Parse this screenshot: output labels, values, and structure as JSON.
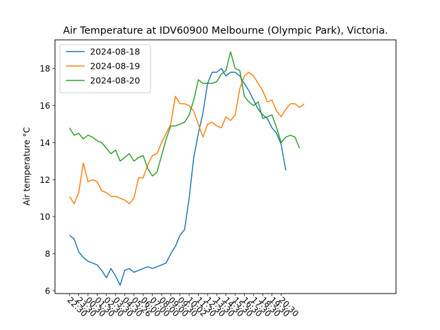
{
  "chart_data": {
    "type": "line",
    "title": "Air Temperature at IDV60900 Melbourne (Olympic Park), Victoria.",
    "xlabel": "",
    "ylabel": "Air temperature °C",
    "ylim": [
      5.85,
      19.55
    ],
    "yticks": [
      6,
      8,
      10,
      12,
      14,
      16,
      18
    ],
    "xlim": [
      -1.58,
      35.48
    ],
    "xticks": [
      "22:30",
      "23:30",
      "00:30",
      "01:30",
      "02:30",
      "03:30",
      "04:30",
      "05:26",
      "06:00",
      "07:00",
      "08:00",
      "09:00",
      "09:30",
      "10:02",
      "11:30",
      "12:30",
      "13:30",
      "14:30",
      "15:30",
      "16:30",
      "17:30",
      "18:30",
      "19:30",
      "20:30"
    ],
    "xtick_positions": [
      0,
      1,
      2,
      3,
      4,
      5,
      6,
      7,
      8,
      9,
      10,
      11,
      12,
      13,
      14,
      15,
      16,
      17,
      18,
      19,
      20,
      21,
      22,
      23
    ],
    "grid": false,
    "legend_position": "top-left",
    "series": [
      {
        "name": "2024-08-18",
        "color": "#1f77b4",
        "x": [
          0,
          0.5,
          1,
          1.5,
          2,
          2.5,
          3,
          3.5,
          4,
          4.5,
          5,
          5.5,
          6,
          6.5,
          7,
          7.5,
          8,
          8.5,
          9,
          9.5,
          10,
          10.5,
          11,
          11.5,
          12,
          12.5,
          13,
          13.5,
          14,
          14.5,
          15,
          15.5,
          16,
          16.5,
          17,
          17.5,
          18,
          18.5,
          19,
          19.5,
          20,
          20.5,
          21,
          21.5,
          22,
          22.5,
          23,
          23.5,
          24,
          24.5,
          25,
          25.5,
          26,
          26.5
        ],
        "y": [
          9.0,
          8.8,
          8.1,
          7.8,
          7.6,
          7.5,
          7.4,
          7.1,
          6.7,
          7.2,
          6.8,
          6.3,
          7.1,
          7.2,
          7.0,
          7.1,
          7.2,
          7.3,
          7.2,
          7.3,
          7.4,
          7.5,
          8.0,
          8.4,
          9.0,
          9.3,
          11.0,
          13.2,
          14.5,
          15.6,
          17.2,
          17.8,
          17.8,
          18.0,
          17.6,
          17.8,
          17.8,
          17.6,
          17.2,
          16.8,
          16.3,
          15.8,
          15.5,
          15.3,
          14.8,
          14.5,
          13.9,
          12.5,
          null,
          null,
          null,
          null,
          null,
          null
        ]
      },
      {
        "name": "2024-08-19",
        "color": "#ff7f0e",
        "x": [
          0,
          0.5,
          1,
          1.5,
          2,
          2.5,
          3,
          3.5,
          4,
          4.5,
          5,
          5.5,
          6,
          6.5,
          7,
          7.5,
          8,
          8.5,
          9,
          9.5,
          10,
          10.5,
          11,
          11.5,
          12,
          12.5,
          13,
          13.5,
          14,
          14.5,
          15,
          15.5,
          16,
          16.5,
          17,
          17.5,
          18,
          18.5,
          19,
          19.5,
          20,
          20.5,
          21,
          21.5,
          22,
          22.5,
          23,
          23.5,
          24,
          24.5,
          25,
          25.5,
          26,
          26.5,
          27,
          27.5,
          28,
          28.5
        ],
        "y": [
          11.1,
          10.7,
          11.3,
          12.9,
          11.9,
          12.0,
          11.9,
          11.4,
          11.3,
          11.1,
          11.1,
          11.0,
          10.9,
          10.7,
          11.0,
          12.1,
          12.1,
          12.8,
          13.3,
          13.4,
          14.0,
          14.5,
          15.0,
          16.5,
          16.1,
          16.1,
          16.0,
          15.7,
          15.0,
          14.3,
          15.0,
          15.1,
          14.9,
          14.8,
          15.4,
          15.2,
          15.5,
          16.9,
          17.6,
          17.8,
          17.6,
          17.2,
          16.8,
          16.2,
          16.3,
          15.7,
          15.4,
          15.8,
          16.1,
          16.1,
          15.9,
          16.1,
          null,
          null,
          null,
          null,
          null,
          null
        ]
      },
      {
        "name": "2024-08-20",
        "color": "#2ca02c",
        "x": [
          0,
          0.5,
          1,
          1.5,
          2,
          2.5,
          3,
          3.5,
          4,
          4.5,
          5,
          5.5,
          6,
          6.5,
          7,
          7.5,
          8,
          8.5,
          9,
          9.5,
          10,
          10.5,
          11,
          11.5,
          12,
          12.5,
          13,
          13.5,
          14,
          14.5,
          15,
          15.5,
          16,
          16.5,
          17,
          17.5,
          18,
          18.5,
          19,
          19.5,
          20,
          20.5,
          21,
          21.5,
          22,
          22.5,
          23,
          23.5,
          24,
          24.5,
          25,
          25.5,
          26,
          26.5
        ],
        "y": [
          14.8,
          14.4,
          14.5,
          14.2,
          14.4,
          14.3,
          14.1,
          14.0,
          13.7,
          13.4,
          13.6,
          13.0,
          13.2,
          13.4,
          13.0,
          13.2,
          13.3,
          12.6,
          12.2,
          12.4,
          13.3,
          14.2,
          14.9,
          14.9,
          15.0,
          15.1,
          15.5,
          16.3,
          17.4,
          17.2,
          17.2,
          17.2,
          17.3,
          17.7,
          17.9,
          18.9,
          18.0,
          17.9,
          16.5,
          16.2,
          16.0,
          16.2,
          15.3,
          15.4,
          15.5,
          14.8,
          14.0,
          14.3,
          14.4,
          14.3,
          13.7,
          null,
          null,
          null
        ]
      }
    ]
  }
}
